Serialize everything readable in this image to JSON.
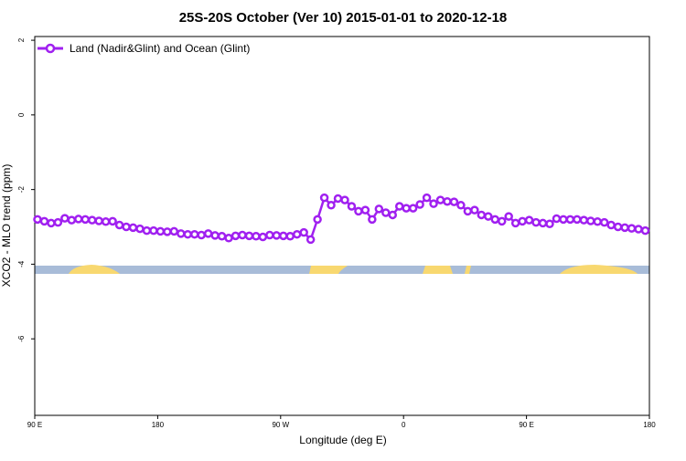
{
  "chart_data": {
    "type": "line",
    "title": "25S-20S October (Ver 10)   2015-01-01 to 2020-12-18",
    "x_label": "Longitude (deg E)",
    "y_label": "XCO2 - MLO trend (ppm)",
    "xlim": [
      90,
      540
    ],
    "ylim": [
      -8.05,
      2.1
    ],
    "xticks": [
      {
        "value": 90,
        "label": "90 E"
      },
      {
        "value": 180,
        "label": "180"
      },
      {
        "value": 270,
        "label": "90 W"
      },
      {
        "value": 360,
        "label": "0"
      },
      {
        "value": 450,
        "label": "90 E"
      },
      {
        "value": 540,
        "label": "180"
      }
    ],
    "yticks": [
      -6,
      -4,
      -2,
      0,
      2
    ],
    "x": [
      92,
      97,
      102,
      107,
      112,
      117,
      122,
      127,
      132,
      137,
      142,
      147,
      152,
      157,
      162,
      167,
      172,
      177,
      182,
      187,
      192,
      197,
      202,
      207,
      212,
      217,
      222,
      227,
      232,
      237,
      242,
      247,
      252,
      257,
      262,
      267,
      272,
      277,
      282,
      287,
      292,
      297,
      302,
      307,
      312,
      317,
      322,
      327,
      332,
      337,
      342,
      347,
      352,
      357,
      362,
      367,
      372,
      377,
      382,
      387,
      392,
      397,
      402,
      407,
      412,
      417,
      422,
      427,
      432,
      437,
      442,
      447,
      452,
      457,
      462,
      467,
      472,
      477,
      482,
      487,
      492,
      497,
      502,
      507,
      512,
      517,
      522,
      527,
      532,
      537
    ],
    "series": [
      {
        "name": "Land (Nadir&Glint) and Ocean (Glint)",
        "color": "#a020f0",
        "values": [
          -2.8,
          -2.85,
          -2.9,
          -2.88,
          -2.77,
          -2.82,
          -2.79,
          -2.8,
          -2.82,
          -2.84,
          -2.86,
          -2.85,
          -2.95,
          -3.0,
          -3.02,
          -3.05,
          -3.1,
          -3.1,
          -3.12,
          -3.13,
          -3.12,
          -3.18,
          -3.2,
          -3.2,
          -3.22,
          -3.18,
          -3.23,
          -3.25,
          -3.3,
          -3.24,
          -3.22,
          -3.24,
          -3.25,
          -3.27,
          -3.22,
          -3.23,
          -3.24,
          -3.25,
          -3.2,
          -3.15,
          -3.34,
          -2.8,
          -2.22,
          -2.42,
          -2.24,
          -2.28,
          -2.45,
          -2.58,
          -2.55,
          -2.8,
          -2.52,
          -2.62,
          -2.68,
          -2.45,
          -2.5,
          -2.5,
          -2.4,
          -2.22,
          -2.38,
          -2.28,
          -2.32,
          -2.33,
          -2.42,
          -2.58,
          -2.55,
          -2.68,
          -2.72,
          -2.8,
          -2.85,
          -2.72,
          -2.9,
          -2.85,
          -2.82,
          -2.88,
          -2.9,
          -2.92,
          -2.78,
          -2.8,
          -2.8,
          -2.8,
          -2.82,
          -2.84,
          -2.86,
          -2.88,
          -2.95,
          -3.0,
          -3.02,
          -3.04,
          -3.06,
          -3.1
        ]
      }
    ]
  }
}
